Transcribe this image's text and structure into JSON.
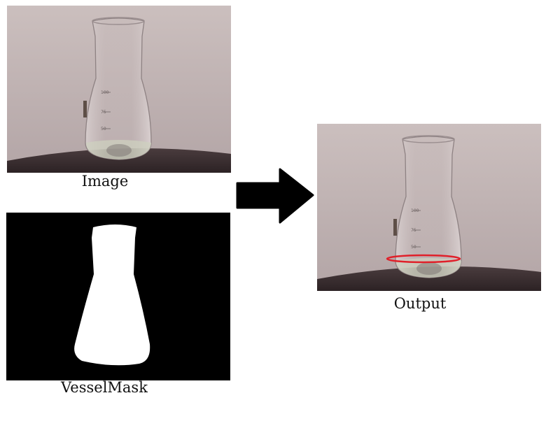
{
  "captions": {
    "image": "Image",
    "vessel_mask": "VesselMask",
    "output": "Output"
  },
  "flask_markings": [
    "100",
    "75",
    "50"
  ],
  "colors": {
    "background": "#ffffff",
    "photo_backdrop": "#c3b6b6",
    "turntable": "#3e3032",
    "mask_background": "#000000",
    "mask_foreground": "#ffffff",
    "arrow": "#000000",
    "liquid_level_marker": "#e0202a"
  },
  "icons": {
    "arrow": "right-arrow-icon",
    "flask": "erlenmeyer-flask"
  }
}
